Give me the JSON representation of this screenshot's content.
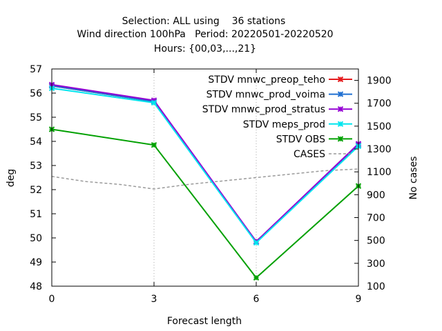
{
  "chart_data": {
    "type": "line",
    "title_lines": [
      "Selection: ALL using    36 stations",
      "Wind direction 100hPa   Period: 20220501-20220520",
      "Hours: {00,03,...,21}"
    ],
    "xlabel": "Forecast length",
    "ylabel": "deg",
    "y2label": "No cases",
    "x": [
      0,
      3,
      6,
      9
    ],
    "xlim": [
      0,
      9
    ],
    "ylim": [
      48,
      57
    ],
    "y2lim": [
      100,
      2000
    ],
    "xticks": [
      "0",
      "3",
      "6",
      "9"
    ],
    "yticks": [
      "48",
      "49",
      "50",
      "51",
      "52",
      "53",
      "54",
      "55",
      "56",
      "57"
    ],
    "y2ticks": [
      "100",
      "300",
      "500",
      "700",
      "900",
      "1100",
      "1300",
      "1500",
      "1700",
      "1900"
    ],
    "grid": true,
    "legend_position": "top-right",
    "series": [
      {
        "name": "STDV mnwc_preop_teho",
        "color": "#e41a1c",
        "marker": "x",
        "axis": "y1",
        "values": [
          56.3,
          55.65,
          49.85,
          53.85
        ]
      },
      {
        "name": "STDV mnwc_prod_voima",
        "color": "#1f6fd1",
        "marker": "x",
        "axis": "y1",
        "values": [
          56.3,
          55.65,
          49.85,
          53.85
        ]
      },
      {
        "name": "STDV mnwc_prod_stratus",
        "color": "#9400d3",
        "marker": "x",
        "axis": "y1",
        "values": [
          56.35,
          55.7,
          49.85,
          53.9
        ]
      },
      {
        "name": "STDV meps_prod",
        "color": "#00e5ee",
        "marker": "x",
        "axis": "y1",
        "values": [
          56.2,
          55.6,
          49.8,
          53.8
        ]
      },
      {
        "name": "STDV OBS",
        "color": "#00a000",
        "marker": "x",
        "axis": "y1",
        "values": [
          54.5,
          53.85,
          48.35,
          52.15
        ]
      },
      {
        "name": "CASES",
        "color": "#999999",
        "marker": "none",
        "dashed": true,
        "axis": "y2",
        "x": [
          0,
          1,
          2,
          3,
          4,
          5,
          6,
          7,
          8,
          9
        ],
        "values": [
          1060,
          1015,
          990,
          950,
          990,
          1020,
          1050,
          1080,
          1110,
          1125
        ]
      }
    ]
  }
}
